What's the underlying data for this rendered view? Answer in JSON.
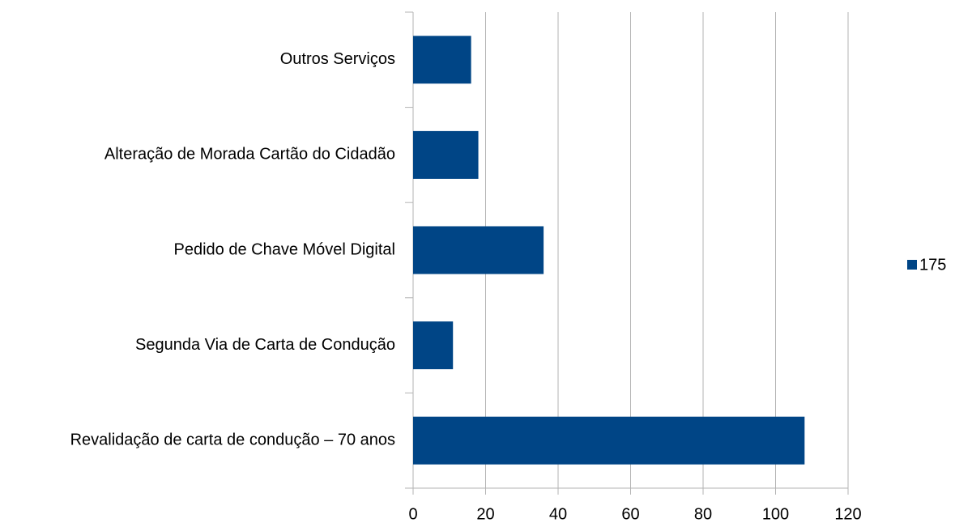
{
  "chart_data": {
    "type": "barh",
    "categories": [
      "Outros Serviços",
      "Alteração de Morada Cartão do Cidadão",
      "Pedido de Chave Móvel Digital",
      "Segunda Via de Carta de Condução",
      "Revalidação de carta de condução – 70 anos"
    ],
    "series": [
      {
        "name": "175",
        "color": "#004586",
        "values": [
          16,
          18,
          36,
          11,
          108
        ]
      }
    ],
    "xlim": [
      0,
      120
    ],
    "xticks": [
      0,
      20,
      40,
      60,
      80,
      100,
      120
    ],
    "grid": true,
    "legend": "right"
  }
}
